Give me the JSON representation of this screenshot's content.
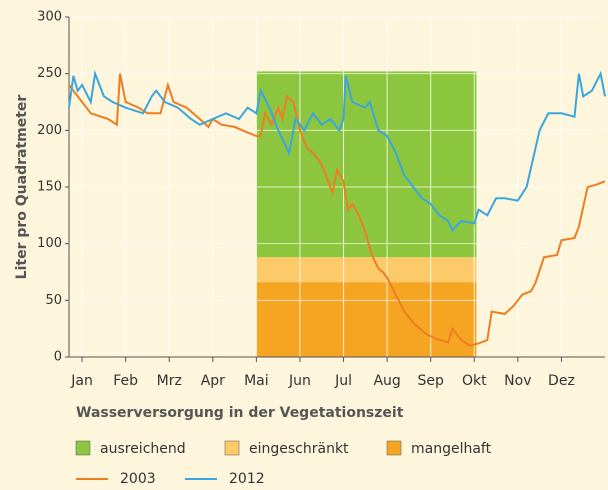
{
  "chart_data": {
    "type": "line",
    "y_label": "Liter pro Quadratmeter",
    "legend_title": "Wasserversorgung in der Vegetationszeit",
    "xlim": [
      -0.3,
      12
    ],
    "ylim": [
      0,
      300
    ],
    "xticks": [
      {
        "value": 0,
        "label": "Jan"
      },
      {
        "value": 1,
        "label": "Feb"
      },
      {
        "value": 2,
        "label": "Mrz"
      },
      {
        "value": 3,
        "label": "Apr"
      },
      {
        "value": 4,
        "label": "Mai"
      },
      {
        "value": 5,
        "label": "Jun"
      },
      {
        "value": 6,
        "label": "Jul"
      },
      {
        "value": 7,
        "label": "Aug"
      },
      {
        "value": 8,
        "label": "Sep"
      },
      {
        "value": 9,
        "label": "Okt"
      },
      {
        "value": 10,
        "label": "Nov"
      },
      {
        "value": 11,
        "label": "Dez"
      }
    ],
    "yticks": [
      0,
      50,
      100,
      150,
      200,
      250,
      300
    ],
    "grid": true,
    "regions": [
      {
        "name": "ausreichend",
        "color": "#8cc63e",
        "x": [
          4,
          9.05
        ],
        "y": [
          88,
          252
        ]
      },
      {
        "name": "eingeschränkt",
        "color": "#fdca6a",
        "x": [
          4,
          9.05
        ],
        "y": [
          66,
          88
        ]
      },
      {
        "name": "mangelhaft",
        "color": "#f6a523",
        "x": [
          4,
          9.05
        ],
        "y": [
          0,
          66
        ]
      }
    ],
    "series": [
      {
        "name": "2003",
        "color": "#ee7d22",
        "x": [
          -0.3,
          0.2,
          0.6,
          0.8,
          0.87,
          1.0,
          1.3,
          1.5,
          1.8,
          1.97,
          2.1,
          2.4,
          2.7,
          2.9,
          3.0,
          3.2,
          3.5,
          3.8,
          4.0,
          4.1,
          4.2,
          4.35,
          4.5,
          4.6,
          4.7,
          4.85,
          5.0,
          5.15,
          5.3,
          5.5,
          5.6,
          5.75,
          5.85,
          6.0,
          6.1,
          6.2,
          6.35,
          6.5,
          6.65,
          6.8,
          6.9,
          7.0,
          7.2,
          7.4,
          7.6,
          7.9,
          8.2,
          8.4,
          8.5,
          8.7,
          8.9,
          9.1,
          9.3,
          9.4,
          9.7,
          9.9,
          10.1,
          10.3,
          10.4,
          10.6,
          10.9,
          11.0,
          11.3,
          11.4,
          11.6,
          11.8,
          12
        ],
        "values": [
          240,
          215,
          210,
          205,
          250,
          225,
          220,
          215,
          215,
          240,
          225,
          220,
          210,
          203,
          210,
          205,
          203,
          198,
          195,
          195,
          215,
          205,
          220,
          210,
          230,
          225,
          200,
          185,
          180,
          170,
          160,
          145,
          165,
          155,
          130,
          135,
          125,
          110,
          90,
          78,
          75,
          70,
          55,
          40,
          30,
          20,
          15,
          13,
          25,
          15,
          10,
          12,
          15,
          40,
          38,
          45,
          55,
          58,
          65,
          88,
          90,
          103,
          105,
          115,
          150,
          152,
          155
        ]
      },
      {
        "name": "2012",
        "color": "#3aa6dd",
        "x": [
          -0.3,
          -0.2,
          -0.1,
          0,
          0.2,
          0.3,
          0.5,
          0.7,
          1.0,
          1.4,
          1.6,
          1.7,
          1.9,
          2.2,
          2.5,
          2.7,
          3.0,
          3.3,
          3.6,
          3.8,
          4.0,
          4.1,
          4.3,
          4.5,
          4.75,
          4.9,
          5.1,
          5.3,
          5.5,
          5.7,
          5.9,
          6.0,
          6.05,
          6.2,
          6.5,
          6.6,
          6.8,
          7.0,
          7.2,
          7.4,
          7.6,
          7.8,
          8.0,
          8.2,
          8.4,
          8.5,
          8.7,
          9.0,
          9.1,
          9.3,
          9.5,
          9.7,
          10.0,
          10.2,
          10.5,
          10.7,
          11.0,
          11.3,
          11.4,
          11.5,
          11.7,
          11.9,
          12
        ],
        "values": [
          220,
          248,
          235,
          240,
          225,
          250,
          230,
          225,
          220,
          215,
          230,
          235,
          225,
          220,
          210,
          205,
          210,
          215,
          210,
          220,
          215,
          235,
          220,
          200,
          180,
          210,
          200,
          215,
          205,
          210,
          200,
          210,
          248,
          225,
          220,
          225,
          200,
          195,
          180,
          160,
          150,
          140,
          135,
          125,
          120,
          112,
          120,
          118,
          130,
          125,
          140,
          140,
          138,
          150,
          200,
          215,
          215,
          212,
          250,
          230,
          235,
          250,
          230
        ]
      }
    ]
  }
}
